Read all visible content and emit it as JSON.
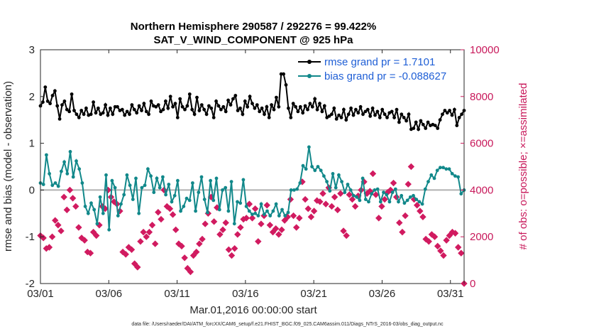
{
  "chart_data": {
    "type": "line",
    "title_line1": "Northern Hemisphere 290587 / 292276 = 99.422%",
    "title_line2": "SAT_V_WIND_COMPONENT @ 925 hPa",
    "xlabel": "Mar.01,2016 00:00:00 start",
    "ylabel_left": "rmse and bias (model - observation)",
    "ylabel_right": "# of obs: o=possible; ×=assimilated",
    "footer": "data file: /Users/raeder/DAI/ATM_forcXX/CAM6_setup/f.e21.FHIST_BGC.f09_025.CAM6assim.011/Diags_NTrS_2016-03/obs_diag_output.nc",
    "x_ticks": [
      0,
      5,
      10,
      15,
      20,
      25,
      30
    ],
    "x_tick_labels": [
      "03/01",
      "03/06",
      "03/11",
      "03/16",
      "03/21",
      "03/26",
      "03/31"
    ],
    "xlim": [
      0,
      31
    ],
    "ylim_left": [
      -2,
      3
    ],
    "y_ticks_left": [
      -2,
      -1,
      0,
      1,
      2,
      3
    ],
    "y_tick_labels_left": [
      "-2",
      "-1",
      "0",
      "1",
      "2",
      "3"
    ],
    "ylim_right": [
      0,
      10000
    ],
    "y_ticks_right": [
      0,
      2000,
      4000,
      6000,
      8000,
      10000
    ],
    "y_tick_labels_right": [
      "0",
      "2000",
      "4000",
      "6000",
      "8000",
      "10000"
    ],
    "legend_position": "top-right",
    "series": [
      {
        "name": "rmse grand pr = 1.7101",
        "color": "#000000",
        "values": [
          1.8,
          1.88,
          2.2,
          1.9,
          1.85,
          2.02,
          2.12,
          1.8,
          1.52,
          1.82,
          1.9,
          1.72,
          1.68,
          2.05,
          1.7,
          1.62,
          1.55,
          1.7,
          1.62,
          1.75,
          1.6,
          1.62,
          1.88,
          1.65,
          1.75,
          1.62,
          1.65,
          1.82,
          1.6,
          1.75,
          1.62,
          1.78,
          1.78,
          1.7,
          1.72,
          1.6,
          1.68,
          1.62,
          1.82,
          1.72,
          1.65,
          1.8,
          1.7,
          1.85,
          1.68,
          1.62,
          1.9,
          1.8,
          1.78,
          1.82,
          1.68,
          1.72,
          1.9,
          1.75,
          2.0,
          1.78,
          1.85,
          1.55,
          1.95,
          1.78,
          1.72,
          1.8,
          2.05,
          1.72,
          1.62,
          1.98,
          1.7,
          1.82,
          1.72,
          1.62,
          1.8,
          1.75,
          1.55,
          1.9,
          1.8,
          1.72,
          1.78,
          1.68,
          1.92,
          1.82,
          1.95,
          2.02,
          1.7,
          1.75,
          1.62,
          1.9,
          1.78,
          2.0,
          1.85,
          1.75,
          1.82,
          1.68,
          1.75,
          1.62,
          1.78,
          1.55,
          1.82,
          1.72,
          1.98,
          1.78,
          2.48,
          2.48,
          2.25,
          1.75,
          1.55,
          1.85,
          1.78,
          1.68,
          1.78,
          1.65,
          1.8,
          1.72,
          1.85,
          1.78,
          1.95,
          1.72,
          1.85,
          1.68,
          1.8,
          1.55,
          1.58,
          1.62,
          1.75,
          1.52,
          1.6,
          1.55,
          1.72,
          1.5,
          1.62,
          1.75,
          1.6,
          1.72,
          1.65,
          1.78,
          1.62,
          1.68,
          1.72,
          1.58,
          1.75,
          1.6,
          1.68,
          1.55,
          1.72,
          1.62,
          1.55,
          1.65,
          1.68,
          1.55,
          1.72,
          1.45,
          1.62,
          1.55,
          1.48,
          1.62,
          1.3,
          1.32,
          1.45,
          1.3,
          1.48,
          1.4,
          1.32,
          1.45,
          1.38,
          1.4,
          1.38,
          1.32,
          1.5,
          1.62,
          1.7,
          1.65,
          1.7,
          1.6,
          1.72,
          1.38,
          1.55,
          1.62,
          1.7
        ]
      },
      {
        "name": "bias grand pr = -0.088627",
        "color": "#11888a",
        "values": [
          0.15,
          0.12,
          0.75,
          0.35,
          0.1,
          0.15,
          0.08,
          0.4,
          0.6,
          0.35,
          0.82,
          0.28,
          0.62,
          0.45,
          0.15,
          -0.35,
          -0.5,
          -0.28,
          -0.42,
          -0.72,
          -0.15,
          -0.5,
          0.32,
          -0.85,
          0.2,
          0.05,
          -0.55,
          -0.3,
          -0.1,
          0.32,
          0.1,
          -0.2,
          0.25,
          -0.5,
          0.05,
          0.1,
          0.45,
          0.3,
          -0.05,
          0.25,
          0.05,
          0.28,
          -0.1,
          0.12,
          -0.25,
          -0.12,
          0.2,
          -0.45,
          -0.35,
          -0.18,
          -0.22,
          0.15,
          -0.45,
          -0.05,
          0.28,
          -0.2,
          -0.48,
          0.2,
          -0.22,
          0.25,
          -0.42,
          0.0,
          0.05,
          -0.45,
          0.18,
          -0.72,
          -0.25,
          -0.28,
          0.22,
          -0.35,
          -0.45,
          -0.52,
          -0.5,
          -0.55,
          -0.3,
          -0.52,
          -0.45,
          -0.55,
          -0.45,
          -0.3,
          -0.55,
          -0.42,
          -0.55,
          -0.48,
          0.0,
          0.0,
          0.02,
          0.15,
          0.52,
          0.45,
          0.92,
          0.5,
          0.42,
          0.5,
          0.42,
          0.3,
          0.18,
          -0.02,
          0.35,
          0.05,
          0.32,
          0.18,
          -0.05,
          0.12,
          0.0,
          -0.12,
          -0.15,
          -0.22,
          0.25,
          -0.2,
          -0.25,
          -0.08,
          0.0,
          0.02,
          -0.25,
          -0.05,
          -0.1,
          -0.25,
          -0.05,
          0.02,
          -0.25,
          -0.12,
          -0.28,
          -0.22,
          -0.15,
          -0.12,
          -0.2,
          -0.25,
          -0.3,
          0.02,
          0.18,
          0.32,
          0.25,
          0.42,
          0.48,
          0.48,
          0.45,
          0.45,
          0.35,
          0.3,
          0.28,
          -0.08,
          0.0
        ]
      },
      {
        "name": "# of obs",
        "color": "#d11b60",
        "values": [
          2050,
          1950,
          1500,
          1550,
          2000,
          2700,
          2500,
          2250,
          3700,
          3150,
          4000,
          3650,
          3300,
          2400,
          1950,
          1850,
          1350,
          1300,
          2200,
          2050,
          2500,
          3300,
          3200,
          4000,
          3700,
          3500,
          3400,
          3100,
          1350,
          1250,
          1550,
          1450,
          850,
          700,
          1800,
          2200,
          2000,
          2200,
          2500,
          1700,
          3050,
          2750,
          4000,
          3300,
          3200,
          2950,
          2300,
          1700,
          1600,
          1100,
          650,
          500,
          1200,
          1350,
          1700,
          1900,
          2550,
          3000,
          3700,
          2650,
          3250,
          2100,
          2300,
          2600,
          1450,
          1200,
          1500,
          2100,
          2400,
          2750,
          2800,
          3400,
          2800,
          3200,
          1800,
          2550,
          2900,
          3350,
          2500,
          2200,
          2350,
          2100,
          2300,
          2700,
          2850,
          3600,
          2900,
          2400,
          2800,
          4350,
          3600,
          3200,
          2850,
          3100,
          3550,
          3500,
          3850,
          3400,
          4100,
          3300,
          3700,
          3150,
          3850,
          2250,
          2050,
          3800,
          3600,
          3300,
          3750,
          4000,
          4350,
          3850,
          3950,
          4700,
          3800,
          2800,
          3300,
          3600,
          3900,
          4000,
          4300,
          3700,
          2600,
          2200,
          2900,
          4250,
          5000,
          3600,
          3350,
          3100,
          2850,
          1900,
          1800,
          2100,
          2000,
          1600,
          1400,
          1200,
          1850,
          2050,
          2200,
          2150,
          1550,
          1300,
          0
        ]
      }
    ]
  }
}
